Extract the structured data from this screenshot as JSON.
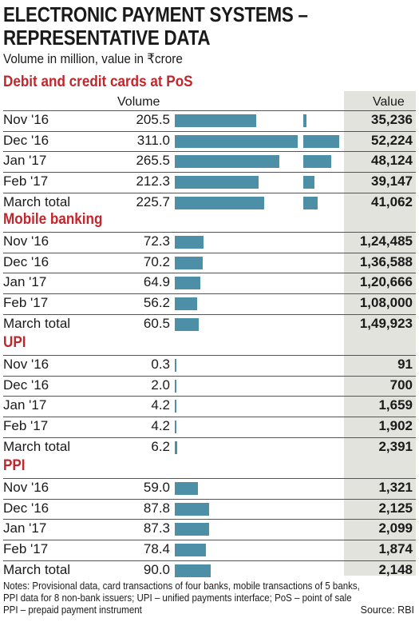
{
  "title_line1": "ELECTRONIC PAYMENT SYSTEMS –",
  "title_line2": "REPRESENTATIVE DATA",
  "subtitle": "Volume in million, value in ₹crore",
  "column_volume": "Volume",
  "column_value": "Value",
  "notes_line1": "Notes: Provisional data, card transactions of four banks, mobile transactions of 5 banks,",
  "notes_line2": "PPI data for 8 non-bank issuers; UPI – unified payments interface; PoS – point of sale",
  "notes_line3": "PPI – prepaid payment instrument",
  "source": "Source: RBI",
  "colors": {
    "bar": "#4d8fa6",
    "section_title": "#c0272d",
    "value_column_bg": "#e3e3dd"
  },
  "chart_data": {
    "type": "table",
    "title": "ELECTRONIC PAYMENT SYSTEMS – REPRESENTATIVE DATA",
    "subtitle": "Volume in million, value in ₹crore",
    "volume_bar_max": 311.0,
    "value_bar_max": 52224,
    "sections": [
      {
        "name": "Debit and credit cards at PoS",
        "value_bars": true,
        "rows": [
          {
            "period": "Nov '16",
            "volume": "205.5",
            "value": "35,236",
            "volume_num": 205.5,
            "value_num": 35236
          },
          {
            "period": "Dec '16",
            "volume": "311.0",
            "value": "52,224",
            "volume_num": 311.0,
            "value_num": 52224
          },
          {
            "period": "Jan '17",
            "volume": "265.5",
            "value": "48,124",
            "volume_num": 265.5,
            "value_num": 48124
          },
          {
            "period": "Feb '17",
            "volume": "212.3",
            "value": "39,147",
            "volume_num": 212.3,
            "value_num": 39147
          },
          {
            "period": "March total",
            "volume": "225.7",
            "value": "41,062",
            "volume_num": 225.7,
            "value_num": 41062
          }
        ]
      },
      {
        "name": "Mobile banking",
        "value_bars": false,
        "rows": [
          {
            "period": "Nov '16",
            "volume": "72.3",
            "value": "1,24,485",
            "volume_num": 72.3,
            "value_num": 124485
          },
          {
            "period": "Dec '16",
            "volume": "70.2",
            "value": "1,36,588",
            "volume_num": 70.2,
            "value_num": 136588
          },
          {
            "period": "Jan '17",
            "volume": "64.9",
            "value": "1,20,666",
            "volume_num": 64.9,
            "value_num": 120666
          },
          {
            "period": "Feb '17",
            "volume": "56.2",
            "value": "1,08,000",
            "volume_num": 56.2,
            "value_num": 108000
          },
          {
            "period": "March total",
            "volume": "60.5",
            "value": "1,49,923",
            "volume_num": 60.5,
            "value_num": 149923
          }
        ]
      },
      {
        "name": "UPI",
        "value_bars": false,
        "rows": [
          {
            "period": "Nov '16",
            "volume": "0.3",
            "value": "91",
            "volume_num": 0.3,
            "value_num": 91
          },
          {
            "period": "Dec '16",
            "volume": "2.0",
            "value": "700",
            "volume_num": 2.0,
            "value_num": 700
          },
          {
            "period": "Jan '17",
            "volume": "4.2",
            "value": "1,659",
            "volume_num": 4.2,
            "value_num": 1659
          },
          {
            "period": "Feb '17",
            "volume": "4.2",
            "value": "1,902",
            "volume_num": 4.2,
            "value_num": 1902
          },
          {
            "period": "March total",
            "volume": "6.2",
            "value": "2,391",
            "volume_num": 6.2,
            "value_num": 2391
          }
        ]
      },
      {
        "name": "PPI",
        "value_bars": false,
        "rows": [
          {
            "period": "Nov '16",
            "volume": "59.0",
            "value": "1,321",
            "volume_num": 59.0,
            "value_num": 1321
          },
          {
            "period": "Dec '16",
            "volume": "87.8",
            "value": "2,125",
            "volume_num": 87.8,
            "value_num": 2125
          },
          {
            "period": "Jan '17",
            "volume": "87.3",
            "value": "2,099",
            "volume_num": 87.3,
            "value_num": 2099
          },
          {
            "period": "Feb '17",
            "volume": "78.4",
            "value": "1,874",
            "volume_num": 78.4,
            "value_num": 1874
          },
          {
            "period": "March total",
            "volume": "90.0",
            "value": "2,148",
            "volume_num": 90.0,
            "value_num": 2148
          }
        ]
      }
    ]
  }
}
